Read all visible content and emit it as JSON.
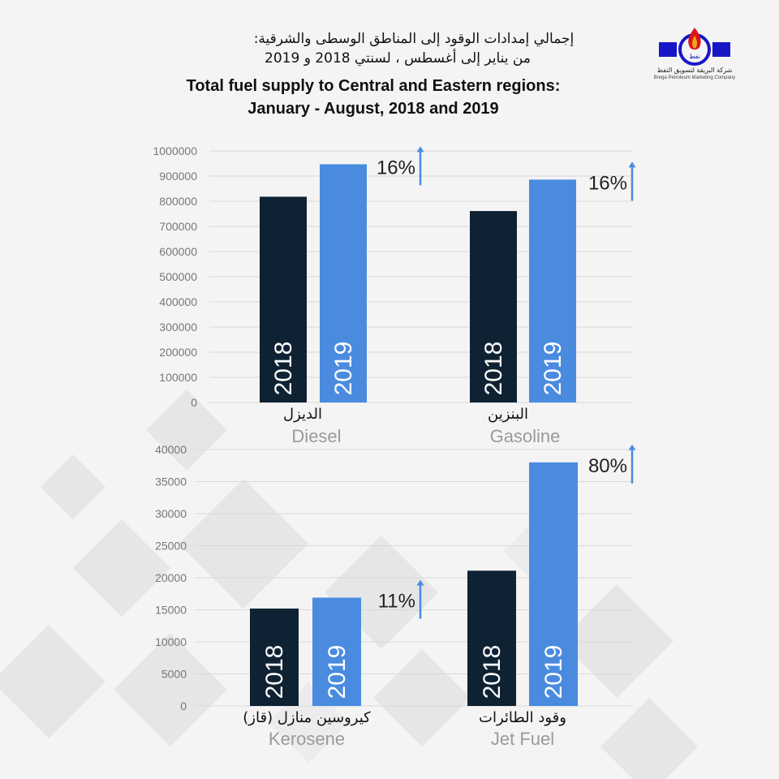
{
  "colors": {
    "bar_2018": "#0f2233",
    "bar_2019": "#4a8be0",
    "arrow": "#4a8be0",
    "grid": "#d9d9d9"
  },
  "header": {
    "title_ar_line1": "إجمالي إمدادات الوقود إلى المناطق الوسطى والشرقية:",
    "title_ar_line2": "من يناير إلى أغسطس ، لسنتي  2018 و 2019",
    "title_en_line1": "Total fuel supply to Central and Eastern regions:",
    "title_en_line2": "January - August, 2018 and 2019"
  },
  "logo": {
    "name_ar": "شركة البريقة لتسويق النفط",
    "name_en": "Brega Petroleum Marketing Company",
    "icon": "flame-logo-icon"
  },
  "chart_data": [
    {
      "type": "bar",
      "ylim": [
        0,
        1000000
      ],
      "yticks": [
        "0",
        "100000",
        "200000",
        "300000",
        "400000",
        "500000",
        "600000",
        "700000",
        "800000",
        "900000",
        "1000000"
      ],
      "categories": [
        {
          "label_ar": "الديزل",
          "label_en": "Diesel",
          "change": "16%"
        },
        {
          "label_ar": "البنزين",
          "label_en": "Gasoline",
          "change": "16%"
        }
      ],
      "series": [
        {
          "name": "2018",
          "values": [
            818000,
            761000
          ]
        },
        {
          "name": "2019",
          "values": [
            947000,
            886000
          ]
        }
      ]
    },
    {
      "type": "bar",
      "ylim": [
        0,
        40000
      ],
      "yticks": [
        "0",
        "5000",
        "10000",
        "15000",
        "20000",
        "25000",
        "30000",
        "35000",
        "40000"
      ],
      "categories": [
        {
          "label_ar": "كيروسين منازل (قاز)",
          "label_en": "Kerosene",
          "change": "11%"
        },
        {
          "label_ar": "وقود الطائرات",
          "label_en": "Jet Fuel",
          "change": "80%"
        }
      ],
      "series": [
        {
          "name": "2018",
          "values": [
            15200,
            21100
          ]
        },
        {
          "name": "2019",
          "values": [
            16900,
            38000
          ]
        }
      ]
    }
  ]
}
